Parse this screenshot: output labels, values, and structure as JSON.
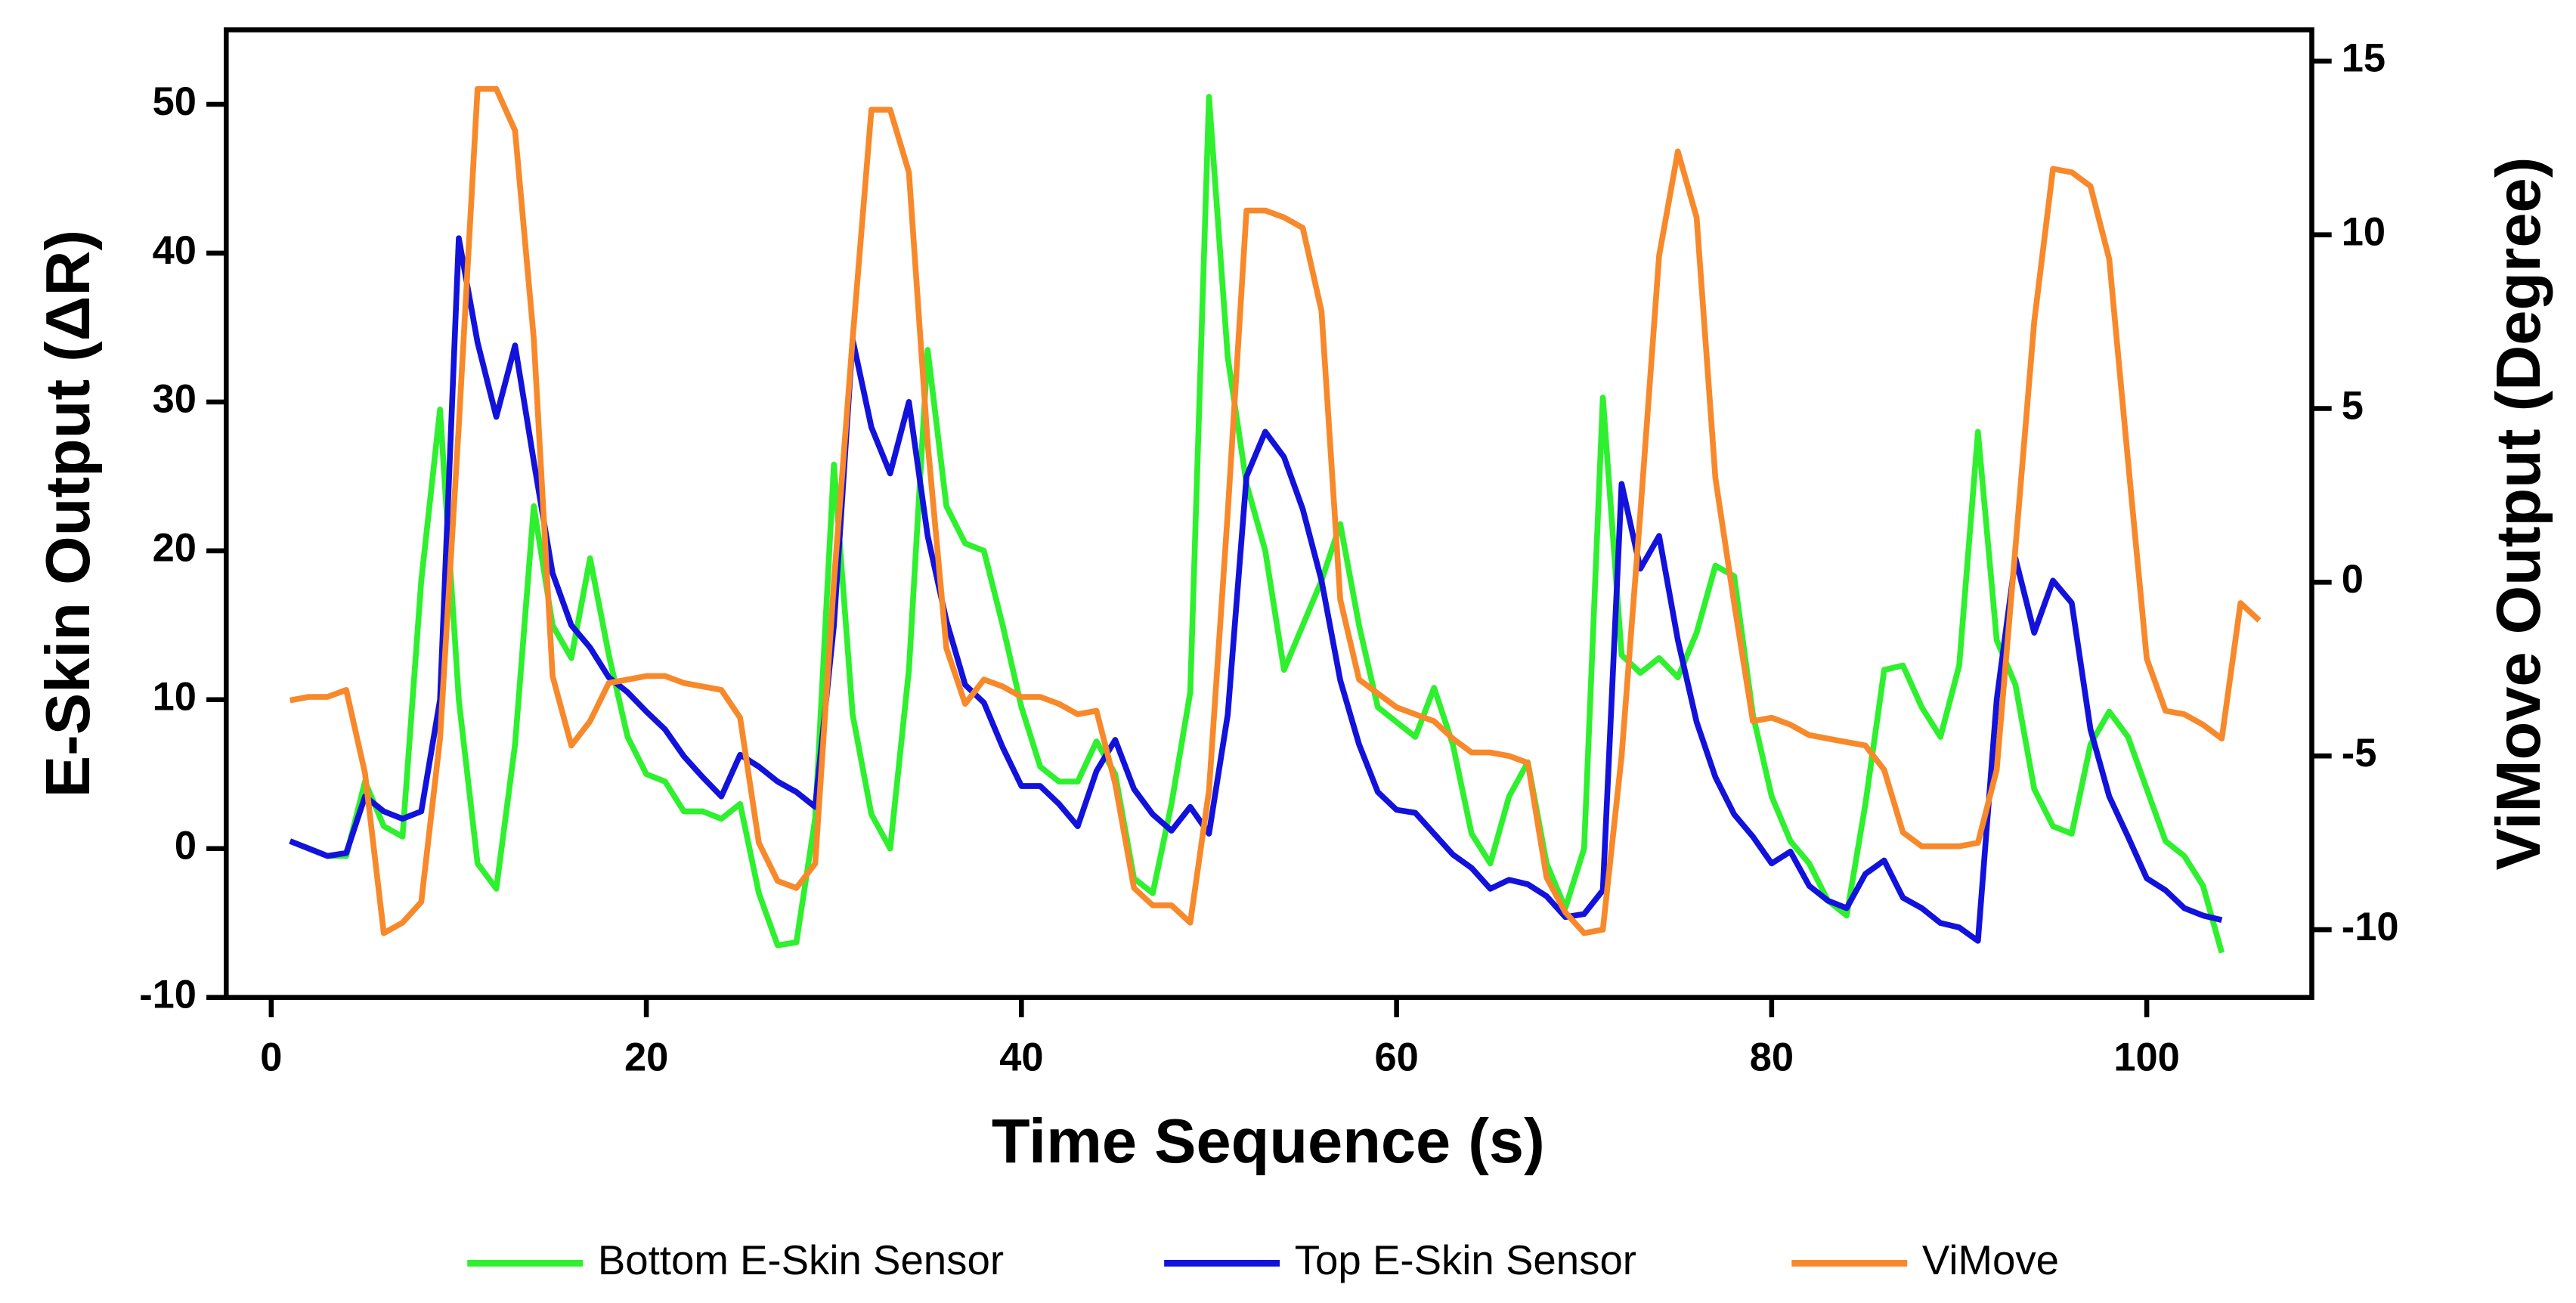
{
  "chart_data": {
    "type": "line",
    "xlabel": "Time Sequence (s)",
    "ylabel": "E-Skin Output (ΔR)",
    "y2label": "ViMove Output (Degree)",
    "xlim": [
      -2.4,
      108.8
    ],
    "xticks": [
      0,
      20,
      40,
      60,
      80,
      100
    ],
    "ylim": [
      -10,
      55
    ],
    "yticks": [
      -10,
      0,
      10,
      20,
      30,
      40,
      50
    ],
    "y2lim": [
      -11.95,
      15.9
    ],
    "y2ticks": [
      -10,
      -5,
      0,
      5,
      10,
      15
    ],
    "legend": "bottom",
    "series": [
      {
        "name": "Bottom E-Skin Sensor",
        "color": "#2ef02e",
        "x": [
          1,
          2,
          3,
          4,
          5,
          6,
          7,
          8,
          9,
          10,
          11,
          12,
          13,
          14,
          15,
          16,
          17,
          18,
          19,
          20,
          21,
          22,
          23,
          24,
          25,
          26,
          27,
          28,
          29,
          30,
          31,
          32,
          33,
          34,
          35,
          36,
          37,
          38,
          39,
          40,
          41,
          42,
          43,
          44,
          45,
          46,
          47,
          48,
          49,
          50,
          51,
          52,
          53,
          54,
          55,
          56,
          57,
          58,
          59,
          60,
          61,
          62,
          63,
          64,
          65,
          66,
          67,
          68,
          69,
          70,
          71,
          72,
          73,
          74,
          75,
          76,
          77,
          78,
          79,
          80,
          81,
          82,
          83,
          84,
          85,
          86,
          87,
          88,
          89,
          90,
          91,
          92,
          93,
          94,
          95,
          96,
          97,
          98,
          99,
          100,
          101,
          102,
          103,
          104
        ],
        "values": [
          0.5,
          0,
          -0.5,
          -0.5,
          4.5,
          1.5,
          0.8,
          18,
          29.5,
          10,
          -1,
          -2.7,
          7,
          23,
          15,
          12.8,
          19.5,
          13,
          7.5,
          5,
          4.5,
          2.5,
          2.5,
          2,
          3,
          -3,
          -6.5,
          -6.3,
          2,
          25.8,
          9,
          2.3,
          0,
          12,
          33.5,
          23,
          20.5,
          20,
          15,
          9.5,
          5.5,
          4.5,
          4.5,
          7.2,
          5,
          -2,
          -3,
          3,
          10.5,
          50.5,
          33,
          24.5,
          20,
          12,
          15,
          18,
          21.8,
          15,
          9.5,
          8.5,
          7.5,
          10.8,
          7,
          1,
          -1,
          3.5,
          5.8,
          -1,
          -4,
          0,
          30.3,
          13,
          11.8,
          12.8,
          11.5,
          14.5,
          19,
          18.3,
          9,
          3.5,
          0.5,
          -1,
          -3.5,
          -4.5,
          3,
          12,
          12.3,
          9.5,
          7.5,
          12.3,
          28,
          14,
          11,
          4,
          1.5,
          1,
          7,
          9.2,
          7.5,
          4,
          0.5,
          -0.5,
          -2.5,
          -7
        ]
      },
      {
        "name": "Top E-Skin Sensor",
        "color": "#1212dc",
        "x": [
          1,
          2,
          3,
          4,
          5,
          6,
          7,
          8,
          9,
          10,
          11,
          12,
          13,
          14,
          15,
          16,
          17,
          18,
          19,
          20,
          21,
          22,
          23,
          24,
          25,
          26,
          27,
          28,
          29,
          30,
          31,
          32,
          33,
          34,
          35,
          36,
          37,
          38,
          39,
          40,
          41,
          42,
          43,
          44,
          45,
          46,
          47,
          48,
          49,
          50,
          51,
          52,
          53,
          54,
          55,
          56,
          57,
          58,
          59,
          60,
          61,
          62,
          63,
          64,
          65,
          66,
          67,
          68,
          69,
          70,
          71,
          72,
          73,
          74,
          75,
          76,
          77,
          78,
          79,
          80,
          81,
          82,
          83,
          84,
          85,
          86,
          87,
          88,
          89,
          90,
          91,
          92,
          93,
          94,
          95,
          96,
          97,
          98,
          99,
          100,
          101,
          102,
          103,
          104
        ],
        "values": [
          0.5,
          0,
          -0.5,
          -0.3,
          3.5,
          2.5,
          2,
          2.5,
          10,
          41,
          34,
          29,
          33.8,
          26,
          18.5,
          15,
          13.5,
          11.5,
          10.5,
          9.2,
          8,
          6.2,
          4.8,
          3.5,
          6.3,
          5.5,
          4.5,
          3.8,
          2.8,
          15,
          34.2,
          28.3,
          25.2,
          30,
          21,
          15.3,
          11,
          9.8,
          6.8,
          4.2,
          4.2,
          3,
          1.5,
          5.2,
          7.3,
          4,
          2.3,
          1.2,
          2.8,
          1,
          9,
          25,
          28,
          26.3,
          22.8,
          18,
          11.3,
          7,
          3.8,
          2.6,
          2.4,
          1,
          -0.4,
          -1.3,
          -2.7,
          -2.1,
          -2.4,
          -3.2,
          -4.6,
          -4.4,
          -2.8,
          24.5,
          18.8,
          21,
          14,
          8.5,
          4.8,
          2.3,
          0.8,
          -1,
          -0.2,
          -2.5,
          -3.5,
          -4,
          -1.7,
          -0.8,
          -3.3,
          -4,
          -5,
          -5.3,
          -6.2,
          10,
          19.5,
          14.5,
          18,
          16.5,
          8,
          3.5,
          0.8,
          -2,
          -2.8,
          -4,
          -4.5,
          -4.8
        ]
      },
      {
        "name": "ViMove",
        "color": "#f7892b",
        "axis": "y2",
        "x": [
          1,
          2,
          3,
          4,
          5,
          6,
          7,
          8,
          9,
          10,
          11,
          12,
          13,
          14,
          15,
          16,
          17,
          18,
          19,
          20,
          21,
          22,
          23,
          24,
          25,
          26,
          27,
          28,
          29,
          30,
          31,
          32,
          33,
          34,
          35,
          36,
          37,
          38,
          39,
          40,
          41,
          42,
          43,
          44,
          45,
          46,
          47,
          48,
          49,
          50,
          51,
          52,
          53,
          54,
          55,
          56,
          57,
          58,
          59,
          60,
          61,
          62,
          63,
          64,
          65,
          66,
          67,
          68,
          69,
          70,
          71,
          72,
          73,
          74,
          75,
          76,
          77,
          78,
          79,
          80,
          81,
          82,
          83,
          84,
          85,
          86,
          87,
          88,
          89,
          90,
          91,
          92,
          93,
          94,
          95,
          96,
          97,
          98,
          99,
          100,
          101,
          102,
          103,
          104,
          105,
          106
        ],
        "values": [
          -3.4,
          -3.3,
          -3.3,
          -3.1,
          -5.5,
          -10.1,
          -9.8,
          -9.2,
          -4.5,
          4.5,
          14.2,
          14.2,
          13,
          7,
          -2.7,
          -4.7,
          -4,
          -2.9,
          -2.8,
          -2.7,
          -2.7,
          -2.9,
          -3,
          -3.1,
          -3.9,
          -7.5,
          -8.6,
          -8.8,
          -8.1,
          0,
          7,
          13.6,
          13.6,
          11.8,
          4,
          -1.9,
          -3.5,
          -2.8,
          -3,
          -3.3,
          -3.3,
          -3.5,
          -3.8,
          -3.7,
          -5.8,
          -8.8,
          -9.3,
          -9.3,
          -9.8,
          -6,
          2,
          10.7,
          10.7,
          10.5,
          10.2,
          7.8,
          -0.5,
          -2.8,
          -3.2,
          -3.6,
          -3.8,
          -4,
          -4.5,
          -4.9,
          -4.9,
          -5,
          -5.2,
          -8.5,
          -9.5,
          -10.1,
          -10,
          -5,
          2,
          9.4,
          12.4,
          10.5,
          3,
          -0.6,
          -4,
          -3.9,
          -4.1,
          -4.4,
          -4.5,
          -4.6,
          -4.7,
          -5.4,
          -7.2,
          -7.6,
          -7.6,
          -7.6,
          -7.5,
          -5.4,
          1,
          7.5,
          11.9,
          11.8,
          11.4,
          9.3,
          3.5,
          -2.2,
          -3.7,
          -3.8,
          -4.1,
          -4.5,
          -0.6,
          -1.1
        ]
      }
    ]
  }
}
